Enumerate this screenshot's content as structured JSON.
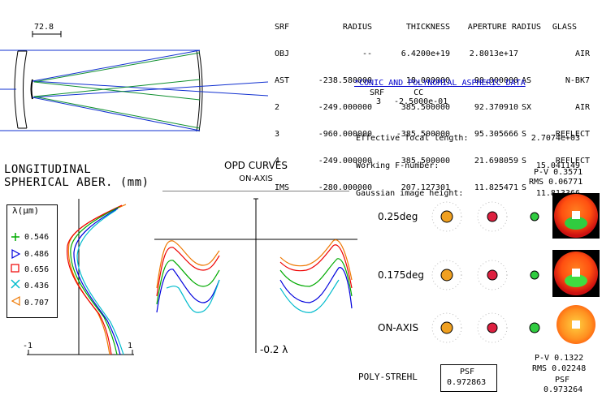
{
  "scale_bar_label": "72.8",
  "table": {
    "headers": [
      "SRF",
      "RADIUS",
      "THICKNESS",
      "APERTURE RADIUS",
      "GLASS"
    ],
    "rows": [
      {
        "srf": "OBJ",
        "radius": "--",
        "thickness": "6.4200e+19",
        "aperture": "2.8013e+17",
        "flag": "",
        "glass": "AIR"
      },
      {
        "srf": "AST",
        "radius": "-238.580000",
        "thickness": "18.000000",
        "aperture": "90.000000",
        "flag": "AS",
        "glass": "N-BK7"
      },
      {
        "srf": "2",
        "radius": "-249.000000",
        "thickness": "385.500000",
        "aperture": "92.370910",
        "flag": "SX",
        "glass": "AIR"
      },
      {
        "srf": "3",
        "radius": "-960.000000",
        "thickness": "-385.500000",
        "aperture": "95.305666",
        "flag": "S",
        "glass": "REFLECT"
      },
      {
        "srf": "4",
        "radius": "-249.000000",
        "thickness": "385.500000",
        "aperture": "21.698059",
        "flag": "S",
        "glass": "REFLECT"
      },
      {
        "srf": "IMS",
        "radius": "-280.000000",
        "thickness": "207.127301",
        "aperture": "11.825471",
        "flag": "S",
        "glass": ""
      }
    ]
  },
  "aspheric": {
    "link": "*CONIC AND POLYNOMIAL ASPHERIC DATA",
    "headers": [
      "SRF",
      "CC"
    ],
    "rows": [
      {
        "srf": "3",
        "cc": "-2.5000e-01"
      }
    ]
  },
  "params": [
    {
      "label": "Effective focal length:",
      "value": "2.7074e+03"
    },
    {
      "label": "Working F-number:",
      "value": "15.041149"
    },
    {
      "label": "Gaussian image height:",
      "value": "11.813366"
    }
  ],
  "lsa": {
    "title_line1": "LONGITUDINAL",
    "title_line2": "SPHERICAL ABER. (mm)",
    "axis_min": "-1",
    "axis_max": "1",
    "legend_title": "λ(μm)",
    "legend": [
      {
        "symbol": "plus",
        "label": "0.546",
        "color": "#00aa00"
      },
      {
        "symbol": "triangle-right",
        "label": "0.486",
        "color": "#0000dd"
      },
      {
        "symbol": "square",
        "label": "0.656",
        "color": "#ee0000"
      },
      {
        "symbol": "x",
        "label": "0.436",
        "color": "#00bbcc"
      },
      {
        "symbol": "triangle-left",
        "label": "0.707",
        "color": "#ee7700"
      }
    ]
  },
  "opd": {
    "title": "OPD CURVES",
    "subtitle": "ON-AXIS",
    "scale_label": "-0.2 λ"
  },
  "fields": [
    {
      "label": "0.25deg"
    },
    {
      "label": "0.175deg"
    },
    {
      "label": "ON-AXIS"
    }
  ],
  "wavefront_top": {
    "pv": "P-V 0.3571",
    "rms": "RMS 0.06771"
  },
  "wavefront_bottom": {
    "pv": "P-V 0.1322",
    "rms": "RMS 0.02248",
    "psf_label": "PSF",
    "psf_value": "0.973264"
  },
  "strehl": {
    "label": "POLY-STREHL",
    "box_label": "PSF",
    "box_value": "0.972863"
  }
}
